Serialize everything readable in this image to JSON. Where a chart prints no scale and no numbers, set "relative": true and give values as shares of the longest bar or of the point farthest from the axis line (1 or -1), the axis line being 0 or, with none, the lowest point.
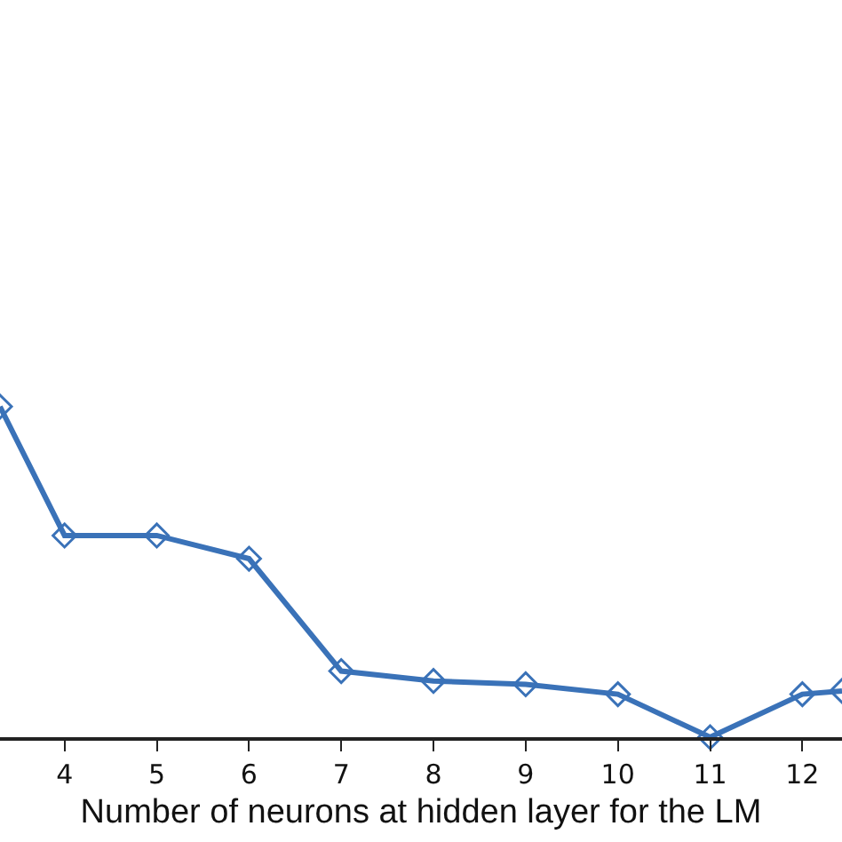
{
  "chart_data": {
    "type": "line",
    "xlabel": "Number of neurons at hidden layer for the LM",
    "relative": true,
    "x": [
      3.3,
      4,
      5,
      6,
      7,
      8,
      9,
      10,
      11,
      12,
      12.43
    ],
    "series": [
      {
        "color": "#3a72b8",
        "values": [
          1,
          0.61,
          0.61,
          0.54,
          0.2,
          0.17,
          0.16,
          0.13,
          0,
          0.13,
          0.14
        ]
      }
    ],
    "xlim": [
      3.3,
      12.43
    ],
    "xticks": [
      4,
      5,
      6,
      7,
      8,
      9,
      10,
      11,
      12
    ],
    "marker": "diamond",
    "line_style": "solid",
    "grid": false,
    "legend": false
  }
}
